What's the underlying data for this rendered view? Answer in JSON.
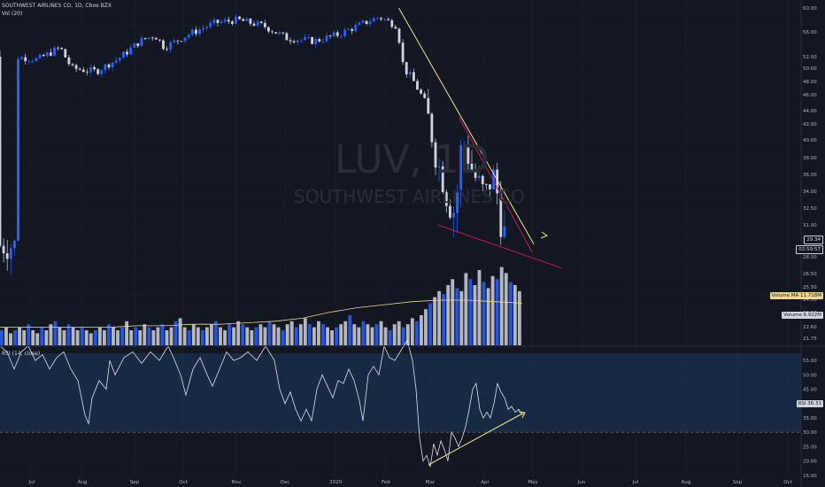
{
  "header": {
    "title": "SOUTHWEST AIRLINES CO, 1D, Cboe BZX",
    "vol_label": "Vol (20)",
    "rsi_label": "RSI (14, close)"
  },
  "watermark": {
    "symbol": "LUV, 1D",
    "name": "SOUTHWEST AIRLINES CO"
  },
  "colors": {
    "background": "#131722",
    "up": "#2962ff",
    "down": "#d1d4dc",
    "trend_yellow": "#f0e68c",
    "trend_red": "#c2185b",
    "rsi_band": "#1e3a5f",
    "vol_ma": "#f0d78c"
  },
  "badges": {
    "last_price": "29.34",
    "countdown": "02:59:57",
    "volume_ma": "Volume MA",
    "volume_ma_value": "11.718M",
    "volume": "Volume",
    "volume_value": "6.922M",
    "rsi": "RSI",
    "rsi_value": "36.31"
  },
  "chart_data": [
    {
      "type": "candlestick",
      "title": "SOUTHWEST AIRLINES CO, 1D, Cboe BZX",
      "x_axis": [
        "Jul",
        "Aug",
        "Sep",
        "Oct",
        "Nov",
        "Dec",
        "2020",
        "Feb",
        "Mar",
        "Apr",
        "May",
        "Jun",
        "Jul",
        "Aug",
        "Sep",
        "Oct"
      ],
      "y_ticks": [
        "60.00",
        "56.00",
        "52.00",
        "50.00",
        "48.00",
        "46.00",
        "44.00",
        "42.00",
        "40.00",
        "38.00",
        "36.00",
        "34.00",
        "32.50",
        "31.00",
        "30.00",
        "28.00",
        "26.50",
        "25.50",
        "24.50",
        "23.50",
        "22.60",
        "21.75"
      ],
      "close_path": [
        [
          "2019-07-01",
          52.0
        ],
        [
          "2019-07-15",
          51.5
        ],
        [
          "2019-07-29",
          53.5
        ],
        [
          "2019-08-05",
          50.0
        ],
        [
          "2019-08-20",
          49.5
        ],
        [
          "2019-09-02",
          51.5
        ],
        [
          "2019-09-16",
          54.5
        ],
        [
          "2019-09-25",
          55.5
        ],
        [
          "2019-10-01",
          53.5
        ],
        [
          "2019-10-15",
          55.5
        ],
        [
          "2019-11-01",
          57.5
        ],
        [
          "2019-11-15",
          58.0
        ],
        [
          "2019-12-01",
          57.0
        ],
        [
          "2019-12-15",
          55.0
        ],
        [
          "2020-01-01",
          54.5
        ],
        [
          "2020-01-15",
          55.5
        ],
        [
          "2020-02-01",
          57.5
        ],
        [
          "2020-02-10",
          58.5
        ],
        [
          "2020-02-21",
          57.0
        ],
        [
          "2020-02-25",
          50.0
        ],
        [
          "2020-03-01",
          48.5
        ],
        [
          "2020-03-09",
          45.0
        ],
        [
          "2020-03-16",
          38.0
        ],
        [
          "2020-03-23",
          33.5
        ],
        [
          "2020-03-28",
          32.0
        ],
        [
          "2020-04-01",
          40.5
        ],
        [
          "2020-04-08",
          36.0
        ],
        [
          "2020-04-15",
          33.5
        ],
        [
          "2020-04-20",
          36.0
        ],
        [
          "2020-04-24",
          32.5
        ],
        [
          "2020-04-28",
          29.34
        ]
      ],
      "trendlines": [
        {
          "color": "yellow",
          "from": [
            "2020-02-22",
            60.0
          ],
          "to": [
            "2020-05-15",
            29.5
          ]
        },
        {
          "color": "red",
          "from": [
            "2020-03-30",
            43.0
          ],
          "to": [
            "2020-05-14",
            28.5
          ]
        },
        {
          "color": "red",
          "from": [
            "2020-03-17",
            31.0
          ],
          "to": [
            "2020-06-01",
            27.0
          ]
        }
      ]
    },
    {
      "type": "bar",
      "title": "Vol (20)",
      "values": [
        5,
        6,
        4,
        5,
        6,
        5,
        7,
        5,
        4,
        6,
        5,
        7,
        8,
        6,
        5,
        7,
        6,
        5,
        6,
        5,
        4,
        5,
        6,
        5,
        7,
        6,
        5,
        6,
        8,
        5,
        6,
        5,
        7,
        6,
        5,
        6,
        7,
        5,
        6,
        8,
        9,
        6,
        5,
        7,
        6,
        5,
        6,
        7,
        8,
        6,
        5,
        7,
        6,
        8,
        7,
        6,
        5,
        6,
        7,
        6,
        8,
        7,
        6,
        5,
        7,
        8,
        6,
        7,
        9,
        7,
        6,
        8,
        7,
        6,
        5,
        6,
        7,
        8,
        10,
        7,
        6,
        8,
        7,
        6,
        7,
        8,
        6,
        5,
        7,
        8,
        6,
        7,
        9,
        8,
        10,
        12,
        14,
        16,
        18,
        17,
        20,
        22,
        19,
        18,
        24,
        22,
        20,
        25,
        21,
        19,
        23,
        22,
        26,
        24,
        21,
        20,
        18
      ],
      "ma": [
        6,
        6,
        6,
        6,
        6,
        6.5,
        6.5,
        7,
        7,
        7.5,
        8,
        9,
        11,
        12.5,
        13.5,
        14.5,
        15,
        15,
        14.5,
        14
      ]
    },
    {
      "type": "line",
      "title": "RSI (14, close)",
      "y_ticks": [
        "55.00",
        "50.00",
        "45.00",
        "40.00",
        "35.00",
        "30.00",
        "25.00",
        "20.00",
        "15.00"
      ],
      "band": [
        30,
        70
      ],
      "values": [
        [
          0,
          60
        ],
        [
          8,
          58
        ],
        [
          16,
          52
        ],
        [
          24,
          58
        ],
        [
          32,
          60
        ],
        [
          40,
          55
        ],
        [
          48,
          57
        ],
        [
          56,
          52
        ],
        [
          64,
          56
        ],
        [
          72,
          58
        ],
        [
          80,
          52
        ],
        [
          88,
          48
        ],
        [
          96,
          36
        ],
        [
          100,
          33
        ],
        [
          104,
          42
        ],
        [
          112,
          48
        ],
        [
          120,
          45
        ],
        [
          124,
          55
        ],
        [
          130,
          50
        ],
        [
          140,
          56
        ],
        [
          150,
          58
        ],
        [
          160,
          54
        ],
        [
          170,
          58
        ],
        [
          180,
          55
        ],
        [
          190,
          60
        ],
        [
          196,
          56
        ],
        [
          204,
          50
        ],
        [
          210,
          43
        ],
        [
          218,
          52
        ],
        [
          226,
          56
        ],
        [
          234,
          50
        ],
        [
          240,
          46
        ],
        [
          248,
          52
        ],
        [
          256,
          58
        ],
        [
          264,
          55
        ],
        [
          272,
          56
        ],
        [
          280,
          58
        ],
        [
          290,
          55
        ],
        [
          300,
          60
        ],
        [
          310,
          55
        ],
        [
          316,
          45
        ],
        [
          322,
          40
        ],
        [
          328,
          44
        ],
        [
          334,
          38
        ],
        [
          340,
          34
        ],
        [
          346,
          38
        ],
        [
          352,
          34
        ],
        [
          358,
          45
        ],
        [
          364,
          50
        ],
        [
          370,
          46
        ],
        [
          376,
          42
        ],
        [
          382,
          48
        ],
        [
          388,
          47
        ],
        [
          394,
          52
        ],
        [
          400,
          48
        ],
        [
          406,
          41
        ],
        [
          410,
          34
        ],
        [
          416,
          50
        ],
        [
          422,
          53
        ],
        [
          428,
          50
        ],
        [
          434,
          60
        ],
        [
          440,
          56
        ],
        [
          446,
          55
        ],
        [
          452,
          58
        ],
        [
          460,
          62
        ],
        [
          466,
          55
        ],
        [
          470,
          45
        ],
        [
          474,
          28
        ],
        [
          478,
          20
        ],
        [
          482,
          22
        ],
        [
          486,
          18
        ],
        [
          490,
          26
        ],
        [
          494,
          22
        ],
        [
          498,
          27
        ],
        [
          502,
          24
        ],
        [
          506,
          20
        ],
        [
          510,
          30
        ],
        [
          514,
          28
        ],
        [
          518,
          25
        ],
        [
          522,
          28
        ],
        [
          526,
          32
        ],
        [
          530,
          38
        ],
        [
          534,
          45
        ],
        [
          538,
          47
        ],
        [
          542,
          38
        ],
        [
          546,
          35
        ],
        [
          550,
          37
        ],
        [
          554,
          35
        ],
        [
          558,
          40
        ],
        [
          562,
          47
        ],
        [
          566,
          44
        ],
        [
          570,
          42
        ],
        [
          574,
          38
        ],
        [
          578,
          39
        ],
        [
          582,
          37
        ],
        [
          586,
          38
        ],
        [
          590,
          36
        ]
      ]
    }
  ]
}
